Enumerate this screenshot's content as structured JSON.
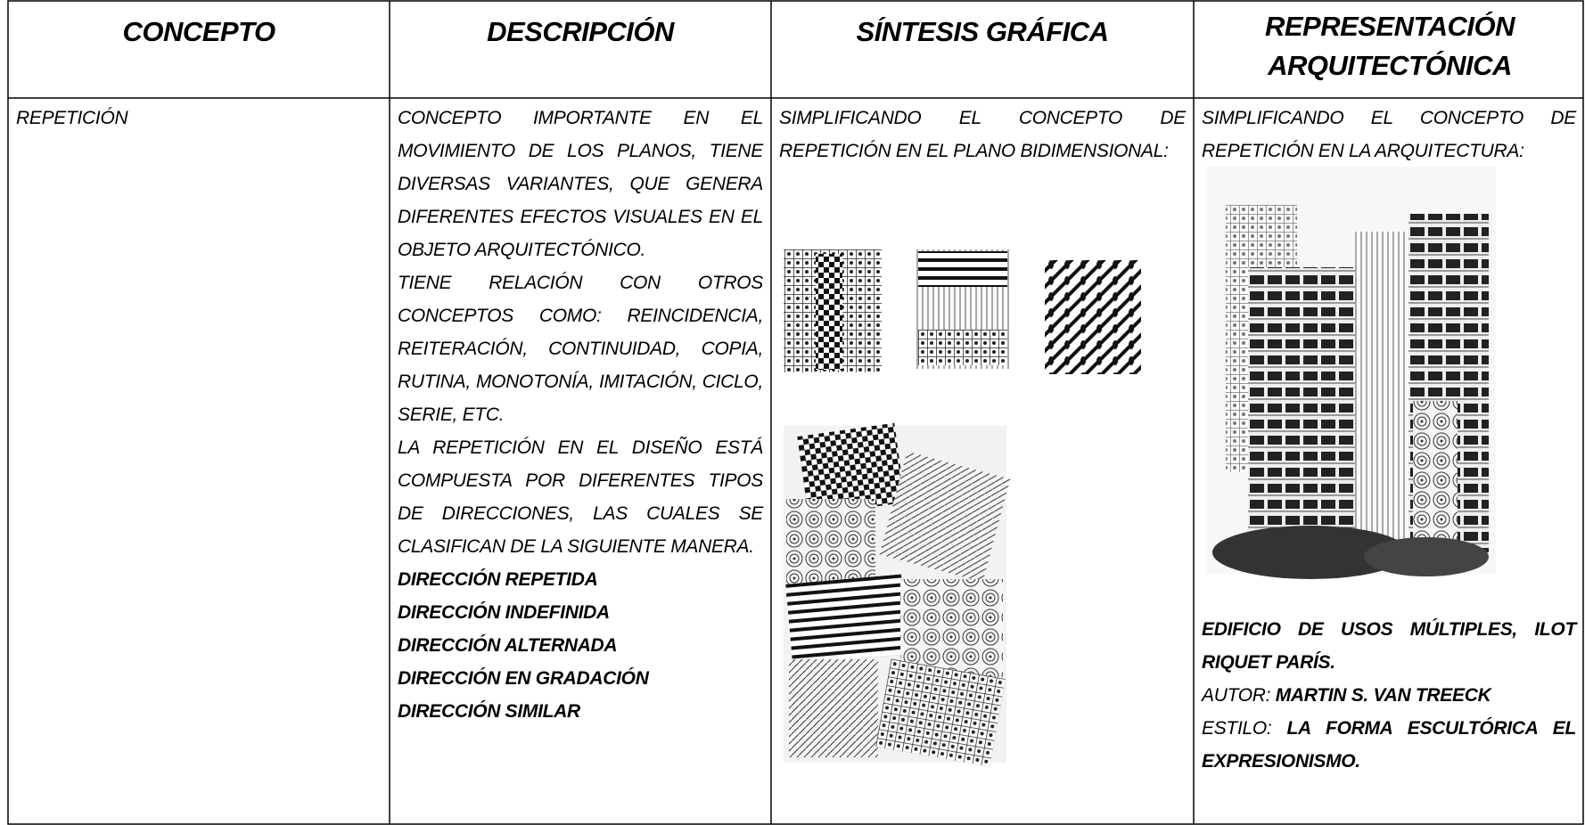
{
  "table": {
    "header": [
      "CONCEPTO",
      "DESCRIPCIÓN",
      "SÍNTESIS GRÁFICA",
      "REPRESENTACIÓN ARQUITECTÓNICA"
    ],
    "row": {
      "concept": "REPETICIÓN",
      "description": {
        "paragraphs": [
          "CONCEPTO IMPORTANTE EN EL MOVIMIENTO DE LOS PLANOS, TIENE DIVERSAS VARIANTES, QUE GENERA DIFERENTES EFECTOS VISUALES EN EL OBJETO ARQUITECTÓNICO.",
          "TIENE RELACIÓN CON OTROS CONCEPTOS COMO: REINCIDENCIA, REITERACIÓN, CONTINUIDAD, COPIA, RUTINA, MONOTONÍA, IMITACIÓN, CICLO, SERIE, ETC.",
          "LA REPETICIÓN EN EL DISEÑO ESTÁ COMPUESTA POR DIFERENTES TIPOS DE DIRECCIONES, LAS CUALES SE CLASIFICAN DE LA SIGUIENTE MANERA."
        ],
        "list": [
          "DIRECCIÓN REPETIDA",
          "DIRECCIÓN INDEFINIDA",
          "DIRECCIÓN ALTERNADA",
          "DIRECCIÓN EN GRADACIÓN",
          "DIRECCIÓN SIMILAR"
        ]
      },
      "synthesis": "SIMPLIFICANDO EL CONCEPTO DE REPETICIÓN EN EL PLANO BIDIMENSIONAL:",
      "representation": {
        "text": "SIMPLIFICANDO EL CONCEPTO DE REPETICIÓN EN LA ARQUITECTURA:",
        "caption": "EDIFICIO DE USOS MÚLTIPLES, ILOT RIQUET PARÍS.",
        "author_label": "AUTOR:",
        "author": "MARTIN S. VAN TREECK",
        "style_label": "ESTILO:",
        "style": "LA FORMA ESCULTÓRICA EL EXPRESIONISMO."
      }
    }
  }
}
